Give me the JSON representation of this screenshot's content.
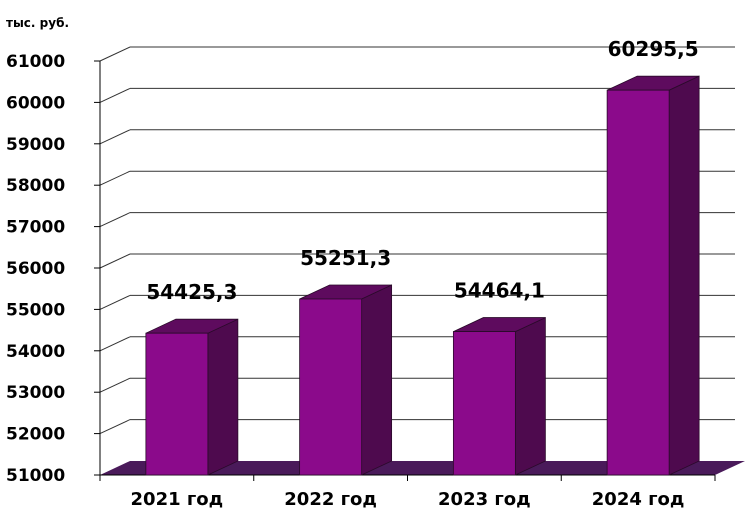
{
  "chart_data": {
    "type": "bar",
    "style": "3d-column",
    "unit_label": "тыс. руб.",
    "categories": [
      "2021 год",
      "2022 год",
      "2023 год",
      "2024 год"
    ],
    "values": [
      54425.3,
      55251.3,
      54464.1,
      60295.5
    ],
    "data_labels": [
      "54425,3",
      "55251,3",
      "54464,1",
      "60295,5"
    ],
    "ylim": [
      51000,
      61000
    ],
    "yticks": [
      51000,
      52000,
      53000,
      54000,
      55000,
      56000,
      57000,
      58000,
      59000,
      60000,
      61000
    ],
    "grid": true,
    "legend": "none",
    "colors": {
      "bar_front": "#8B0A8B",
      "bar_side": "#4E0A4E",
      "bar_top": "#5E0B5E",
      "floor": "#4A1A5A",
      "grid": "#333333"
    }
  }
}
